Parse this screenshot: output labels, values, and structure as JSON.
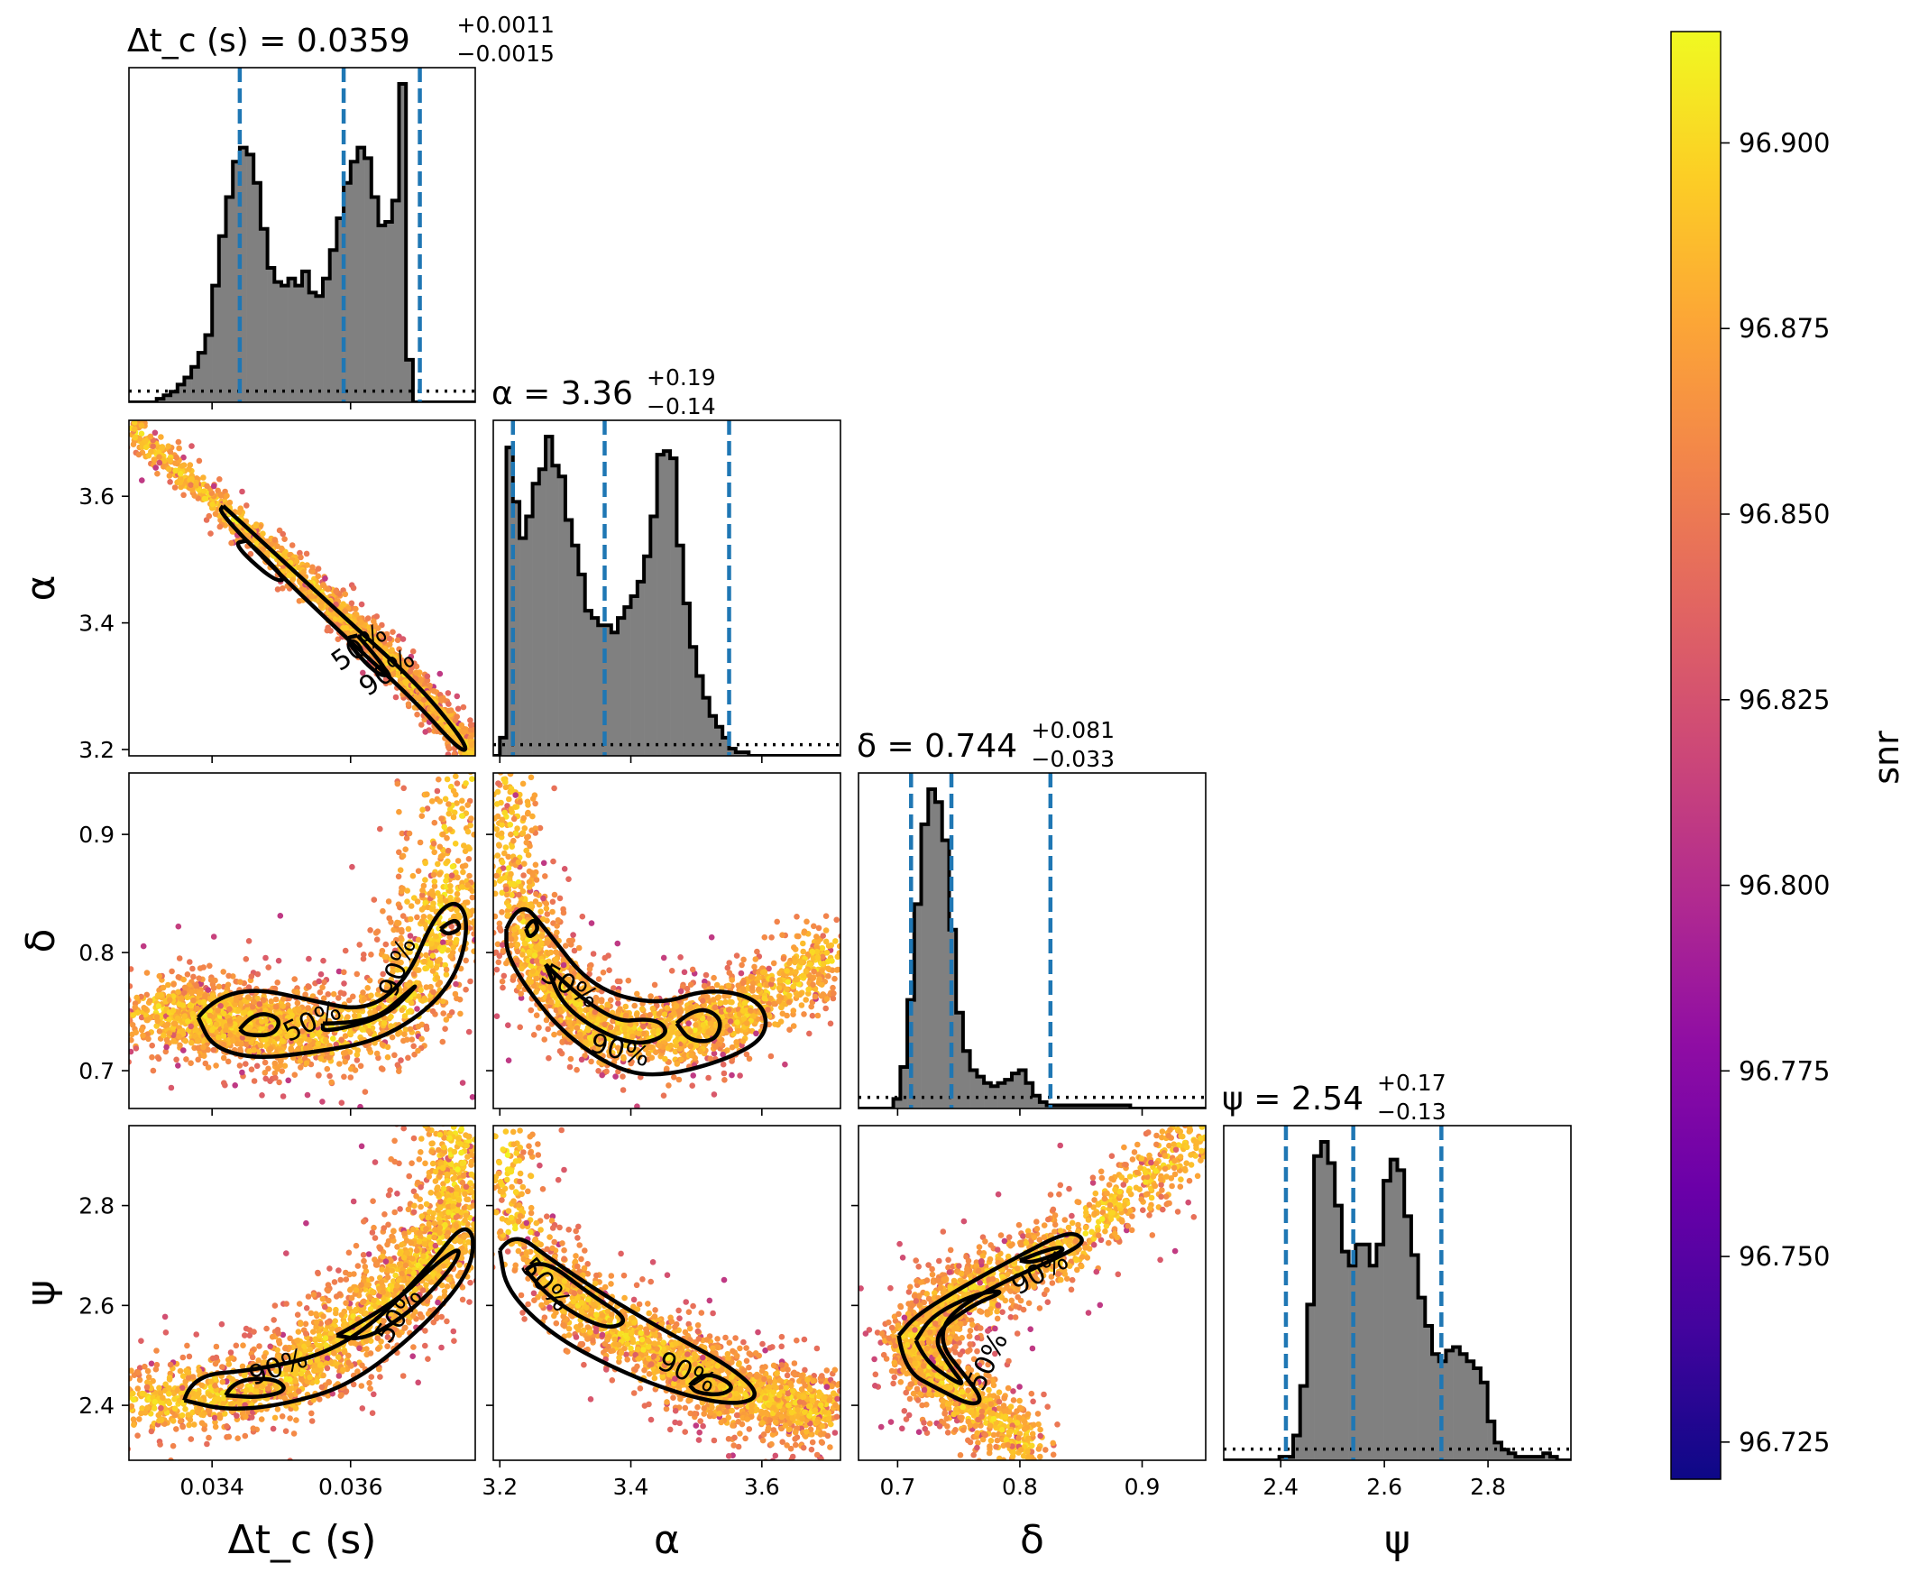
{
  "chart_data": {
    "type": "corner",
    "parameters": [
      {
        "key": "dtc",
        "label": "Δt_c (s)",
        "range": [
          0.0328,
          0.0378
        ],
        "ticks": [
          "0.034",
          "0.036"
        ],
        "tick_values": [
          0.034,
          0.036
        ]
      },
      {
        "key": "alpha",
        "label": "α",
        "range": [
          3.19,
          3.72
        ],
        "ticks": [
          "3.2",
          "3.4",
          "3.6"
        ],
        "tick_values": [
          3.2,
          3.4,
          3.6
        ]
      },
      {
        "key": "delta",
        "label": "δ",
        "range": [
          0.668,
          0.952
        ],
        "ticks": [
          "0.7",
          "0.8",
          "0.9"
        ],
        "tick_values": [
          0.7,
          0.8,
          0.9
        ]
      },
      {
        "key": "psi",
        "label": "ψ",
        "range": [
          2.29,
          2.96
        ],
        "ticks": [
          "2.4",
          "2.6",
          "2.8"
        ],
        "tick_values": [
          2.4,
          2.6,
          2.8
        ]
      }
    ],
    "titles": [
      {
        "lhs": "Δt_c (s) = ",
        "median": "0.0359",
        "plus": "+0.0011",
        "minus": "−0.0015"
      },
      {
        "lhs": "α = ",
        "median": "3.36",
        "plus": "+0.19",
        "minus": "−0.14"
      },
      {
        "lhs": "δ = ",
        "median": "0.744",
        "plus": "+0.081",
        "minus": "−0.033"
      },
      {
        "lhs": "ψ = ",
        "median": "2.54",
        "plus": "+0.17",
        "minus": "−0.13"
      }
    ],
    "quantile_lines": [
      [
        0.0344,
        0.0359,
        0.037
      ],
      [
        3.22,
        3.36,
        3.55
      ],
      [
        0.711,
        0.744,
        0.825
      ],
      [
        2.41,
        2.54,
        2.71
      ]
    ],
    "histograms": [
      {
        "x_start": 0.0328,
        "bin_width": 0.0001,
        "counts": [
          0,
          0,
          0,
          0,
          1,
          2,
          3,
          5,
          7,
          10,
          14,
          19,
          33,
          47,
          58,
          68,
          72,
          70,
          62,
          49,
          38,
          34,
          33,
          35,
          33,
          37,
          31,
          30,
          35,
          43,
          52,
          62,
          68,
          72,
          69,
          58,
          50,
          51,
          57,
          90,
          12,
          0,
          0,
          0,
          0,
          0,
          0,
          0,
          0,
          0
        ]
      },
      {
        "x_start": 3.19,
        "bin_width": 0.01,
        "counts": [
          0,
          5,
          85,
          70,
          60,
          66,
          75,
          79,
          88,
          80,
          77,
          65,
          58,
          50,
          40,
          38,
          36,
          36,
          34,
          38,
          41,
          44,
          48,
          55,
          66,
          83,
          84,
          82,
          58,
          42,
          30,
          22,
          16,
          11,
          8,
          5,
          2,
          1,
          1,
          0,
          0,
          0,
          0,
          0,
          0,
          0,
          0,
          0,
          0,
          0,
          0,
          0,
          0
        ]
      },
      {
        "x_start": 0.668,
        "bin_width": 0.0057,
        "counts": [
          0,
          0,
          0,
          0,
          0,
          3,
          13,
          34,
          64,
          89,
          100,
          96,
          84,
          56,
          30,
          18,
          12,
          10,
          8,
          7,
          8,
          9,
          11,
          12,
          8,
          4,
          2,
          1,
          1,
          1,
          1,
          1,
          1,
          1,
          1,
          1,
          1,
          1,
          1,
          0,
          0,
          0,
          0,
          0,
          0,
          0,
          0,
          0,
          0,
          0
        ]
      },
      {
        "x_start": 2.29,
        "bin_width": 0.0134,
        "counts": [
          0,
          0,
          0,
          0,
          0,
          0,
          0,
          0,
          1,
          1,
          7,
          21,
          44,
          86,
          90,
          84,
          72,
          59,
          55,
          61,
          61,
          55,
          61,
          79,
          85,
          82,
          69,
          58,
          46,
          38,
          30,
          28,
          31,
          32,
          30,
          28,
          26,
          22,
          11,
          5,
          3,
          2,
          1,
          1,
          1,
          1,
          2,
          1,
          0,
          0
        ]
      }
    ],
    "contour_levels": [
      "50%",
      "90%"
    ],
    "colorbar": {
      "label": "snr",
      "min": 96.72,
      "max": 96.915,
      "ticks": [
        "96.725",
        "96.750",
        "96.775",
        "96.800",
        "96.825",
        "96.850",
        "96.875",
        "96.900"
      ],
      "colormap": "plasma"
    }
  },
  "colors": {
    "hist_fill": "#808080",
    "quantile_line": "#1f77b4",
    "contour": "#000000"
  }
}
